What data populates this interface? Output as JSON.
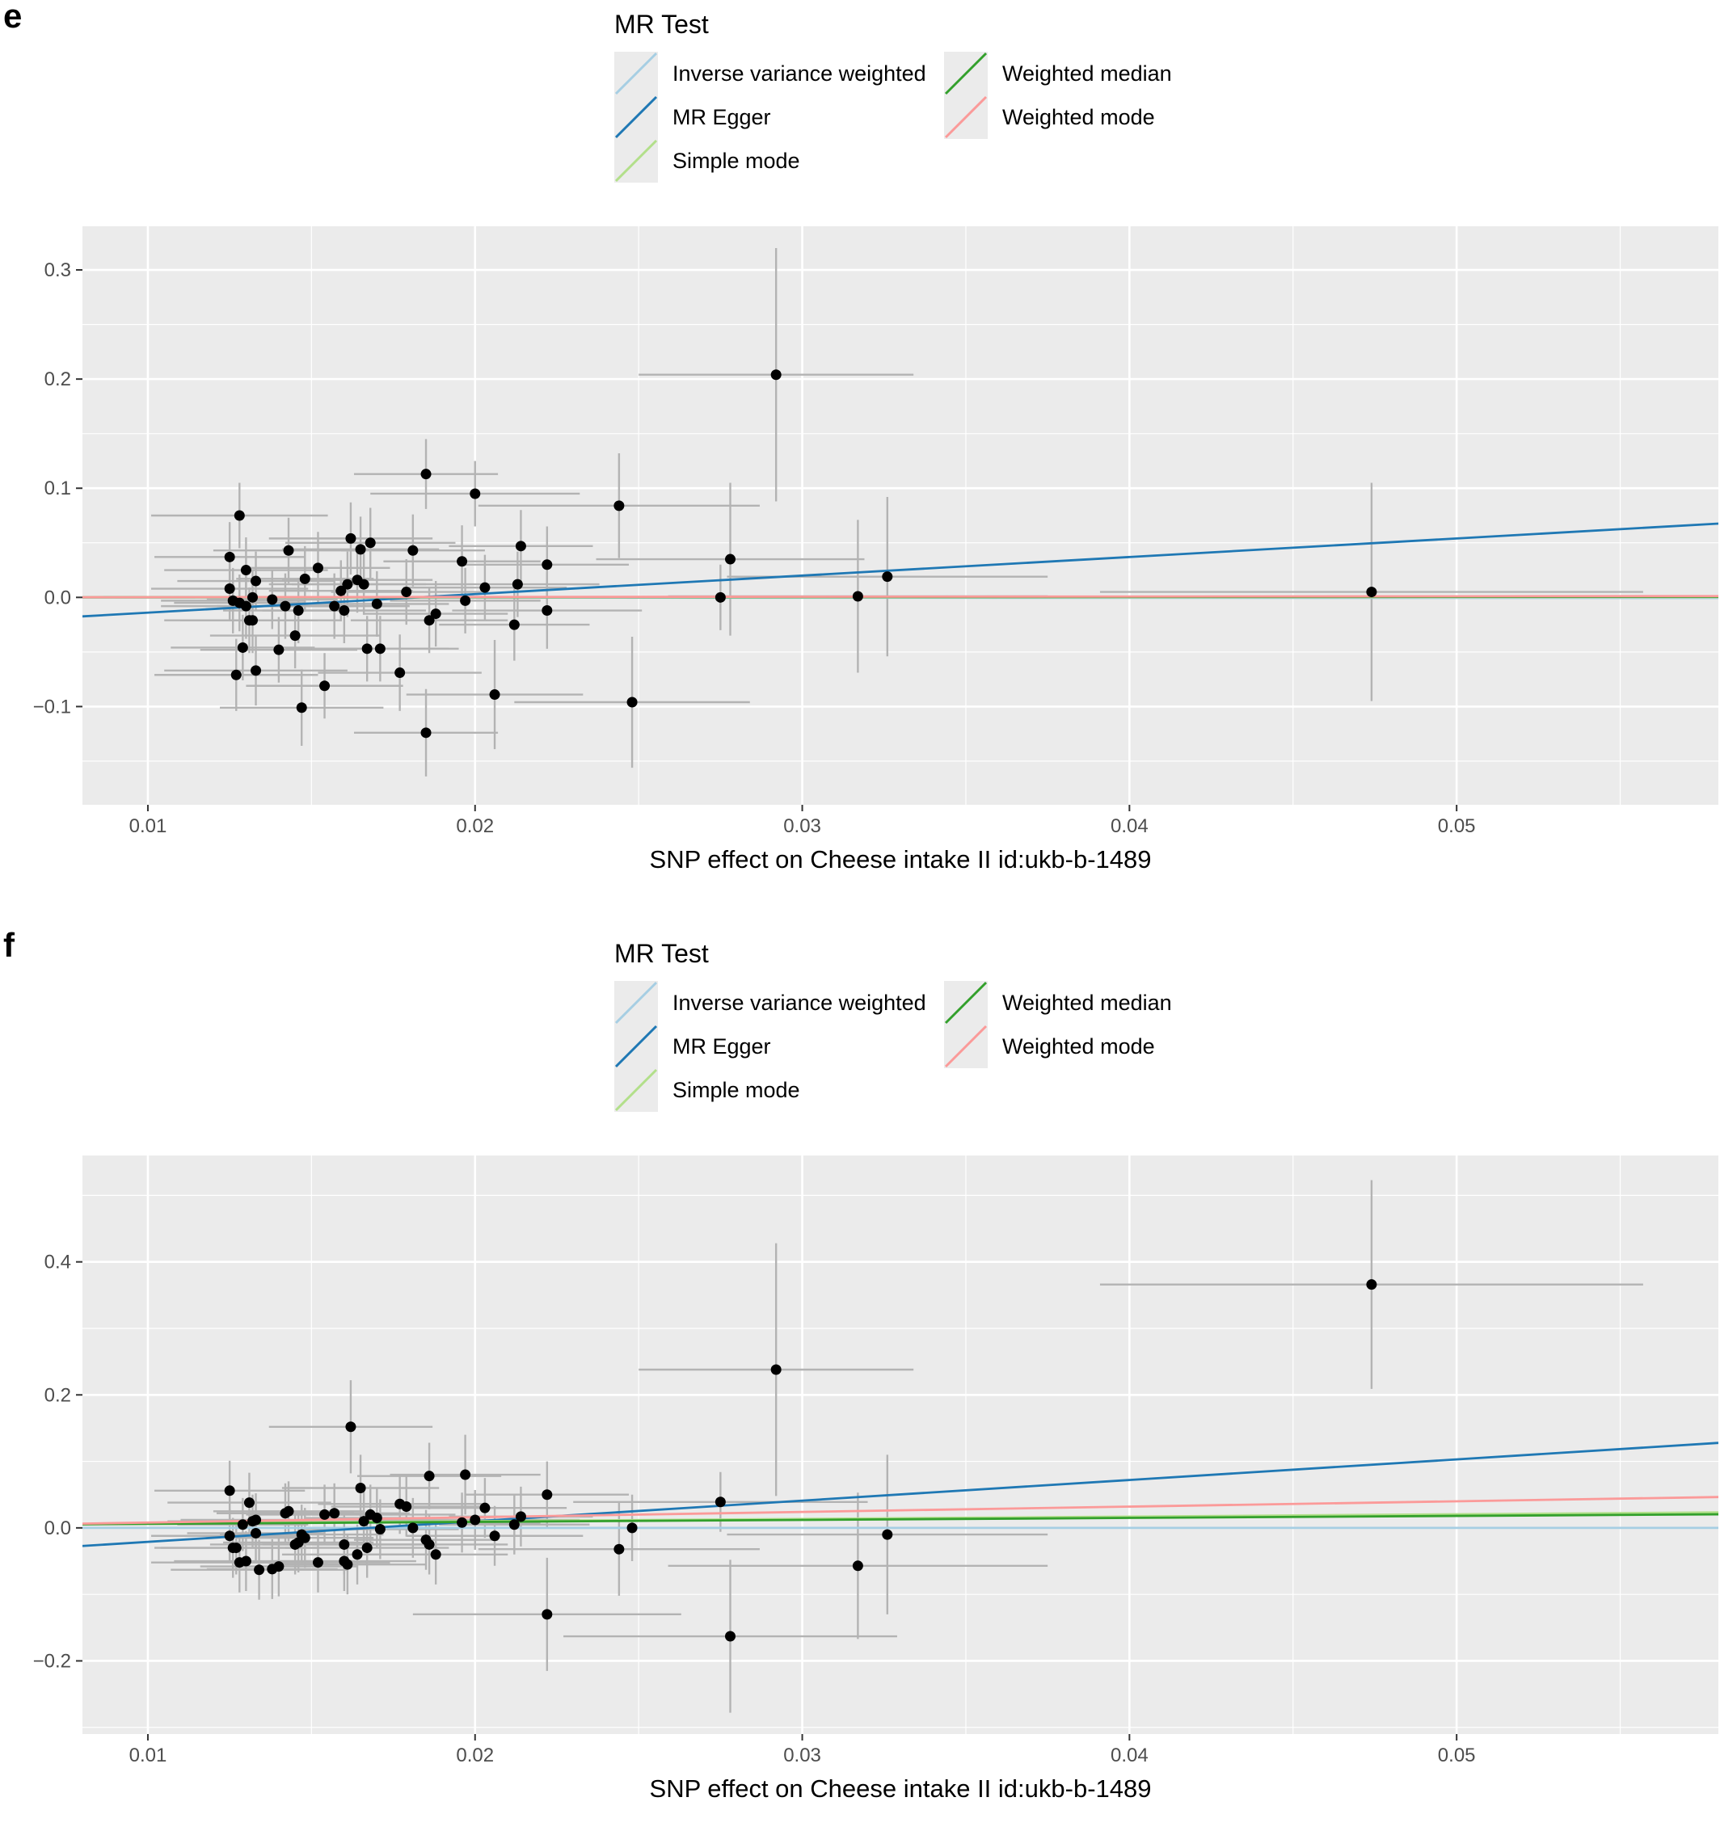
{
  "legend": {
    "title": "MR Test",
    "items": [
      {
        "label": "Inverse variance weighted",
        "color": "#a6cee3"
      },
      {
        "label": "MR Egger",
        "color": "#1f78b4"
      },
      {
        "label": "Simple mode",
        "color": "#b2df8a"
      },
      {
        "label": "Weighted median",
        "color": "#33a02c"
      },
      {
        "label": "Weighted mode",
        "color": "#fb9a99"
      }
    ]
  },
  "chart_data": [
    {
      "panel": "e",
      "type": "scatter",
      "xlabel": "SNP effect on Cheese intake II id:ukb-b-1489",
      "ylabel": "",
      "xlim": [
        0.008,
        0.058
      ],
      "ylim": [
        -0.19,
        0.34
      ],
      "x_ticks": [
        0.01,
        0.02,
        0.03,
        0.04,
        0.05
      ],
      "x_tick_labels": [
        "0.01",
        "0.02",
        "0.03",
        "0.04",
        "0.05"
      ],
      "y_ticks": [
        -0.1,
        0.0,
        0.1,
        0.2,
        0.3
      ],
      "y_tick_labels": [
        "−0.1",
        "0.0",
        "0.1",
        "0.2",
        "0.3"
      ],
      "grid": true,
      "points": [
        {
          "x": 0.0125,
          "y": 0.008,
          "xerr": 0.0024,
          "yerr": 0.03
        },
        {
          "x": 0.0125,
          "y": 0.037,
          "xerr": 0.0023,
          "yerr": 0.032
        },
        {
          "x": 0.0126,
          "y": -0.003,
          "xerr": 0.0022,
          "yerr": 0.03
        },
        {
          "x": 0.0127,
          "y": -0.071,
          "xerr": 0.0025,
          "yerr": 0.033
        },
        {
          "x": 0.0128,
          "y": 0.075,
          "xerr": 0.0027,
          "yerr": 0.03
        },
        {
          "x": 0.0128,
          "y": -0.005,
          "xerr": 0.002,
          "yerr": 0.026
        },
        {
          "x": 0.0129,
          "y": -0.046,
          "xerr": 0.0022,
          "yerr": 0.03
        },
        {
          "x": 0.013,
          "y": 0.025,
          "xerr": 0.0025,
          "yerr": 0.03
        },
        {
          "x": 0.013,
          "y": -0.008,
          "xerr": 0.0026,
          "yerr": 0.03
        },
        {
          "x": 0.0131,
          "y": -0.021,
          "xerr": 0.0021,
          "yerr": 0.03
        },
        {
          "x": 0.0132,
          "y": 0.0,
          "xerr": 0.0023,
          "yerr": 0.025
        },
        {
          "x": 0.0132,
          "y": -0.021,
          "xerr": 0.0027,
          "yerr": 0.03
        },
        {
          "x": 0.0133,
          "y": 0.015,
          "xerr": 0.0024,
          "yerr": 0.027
        },
        {
          "x": 0.0133,
          "y": -0.067,
          "xerr": 0.0028,
          "yerr": 0.032
        },
        {
          "x": 0.0138,
          "y": -0.002,
          "xerr": 0.002,
          "yerr": 0.027
        },
        {
          "x": 0.014,
          "y": -0.048,
          "xerr": 0.0024,
          "yerr": 0.03
        },
        {
          "x": 0.0142,
          "y": -0.008,
          "xerr": 0.0021,
          "yerr": 0.03
        },
        {
          "x": 0.0143,
          "y": 0.043,
          "xerr": 0.0023,
          "yerr": 0.03
        },
        {
          "x": 0.0145,
          "y": -0.035,
          "xerr": 0.0026,
          "yerr": 0.03
        },
        {
          "x": 0.0146,
          "y": -0.012,
          "xerr": 0.0023,
          "yerr": 0.03
        },
        {
          "x": 0.0147,
          "y": -0.101,
          "xerr": 0.0025,
          "yerr": 0.035
        },
        {
          "x": 0.0148,
          "y": 0.017,
          "xerr": 0.0021,
          "yerr": 0.03
        },
        {
          "x": 0.0152,
          "y": 0.027,
          "xerr": 0.0022,
          "yerr": 0.033
        },
        {
          "x": 0.0154,
          "y": -0.081,
          "xerr": 0.0024,
          "yerr": 0.03
        },
        {
          "x": 0.0157,
          "y": -0.008,
          "xerr": 0.0023,
          "yerr": 0.03
        },
        {
          "x": 0.0159,
          "y": 0.006,
          "xerr": 0.0022,
          "yerr": 0.028
        },
        {
          "x": 0.016,
          "y": -0.012,
          "xerr": 0.0025,
          "yerr": 0.03
        },
        {
          "x": 0.0161,
          "y": 0.012,
          "xerr": 0.0024,
          "yerr": 0.03
        },
        {
          "x": 0.0162,
          "y": 0.054,
          "xerr": 0.0025,
          "yerr": 0.033
        },
        {
          "x": 0.0164,
          "y": 0.016,
          "xerr": 0.0023,
          "yerr": 0.03
        },
        {
          "x": 0.0165,
          "y": 0.044,
          "xerr": 0.0024,
          "yerr": 0.03
        },
        {
          "x": 0.0166,
          "y": 0.012,
          "xerr": 0.0022,
          "yerr": 0.028
        },
        {
          "x": 0.0167,
          "y": -0.047,
          "xerr": 0.0025,
          "yerr": 0.03
        },
        {
          "x": 0.0168,
          "y": 0.05,
          "xerr": 0.0026,
          "yerr": 0.032
        },
        {
          "x": 0.017,
          "y": -0.006,
          "xerr": 0.0022,
          "yerr": 0.03
        },
        {
          "x": 0.0171,
          "y": -0.047,
          "xerr": 0.0024,
          "yerr": 0.03
        },
        {
          "x": 0.0177,
          "y": -0.069,
          "xerr": 0.0025,
          "yerr": 0.035
        },
        {
          "x": 0.0179,
          "y": 0.005,
          "xerr": 0.0023,
          "yerr": 0.03
        },
        {
          "x": 0.0181,
          "y": 0.043,
          "xerr": 0.0022,
          "yerr": 0.033
        },
        {
          "x": 0.0185,
          "y": -0.124,
          "xerr": 0.0022,
          "yerr": 0.04
        },
        {
          "x": 0.0185,
          "y": 0.113,
          "xerr": 0.0022,
          "yerr": 0.032
        },
        {
          "x": 0.0186,
          "y": -0.021,
          "xerr": 0.0024,
          "yerr": 0.03
        },
        {
          "x": 0.0188,
          "y": -0.015,
          "xerr": 0.0022,
          "yerr": 0.03
        },
        {
          "x": 0.0196,
          "y": 0.033,
          "xerr": 0.0024,
          "yerr": 0.033
        },
        {
          "x": 0.0197,
          "y": -0.003,
          "xerr": 0.0023,
          "yerr": 0.03
        },
        {
          "x": 0.02,
          "y": 0.095,
          "xerr": 0.0032,
          "yerr": 0.03
        },
        {
          "x": 0.0203,
          "y": 0.009,
          "xerr": 0.0025,
          "yerr": 0.03
        },
        {
          "x": 0.0206,
          "y": -0.089,
          "xerr": 0.0027,
          "yerr": 0.05
        },
        {
          "x": 0.0212,
          "y": -0.025,
          "xerr": 0.0023,
          "yerr": 0.033
        },
        {
          "x": 0.0213,
          "y": 0.012,
          "xerr": 0.0025,
          "yerr": 0.03
        },
        {
          "x": 0.0214,
          "y": 0.047,
          "xerr": 0.0022,
          "yerr": 0.033
        },
        {
          "x": 0.0222,
          "y": -0.012,
          "xerr": 0.0029,
          "yerr": 0.035
        },
        {
          "x": 0.0222,
          "y": 0.03,
          "xerr": 0.0025,
          "yerr": 0.035
        },
        {
          "x": 0.0244,
          "y": 0.084,
          "xerr": 0.0043,
          "yerr": 0.048
        },
        {
          "x": 0.0248,
          "y": -0.096,
          "xerr": 0.0036,
          "yerr": 0.06
        },
        {
          "x": 0.0275,
          "y": 0.0,
          "xerr": 0.0045,
          "yerr": 0.03
        },
        {
          "x": 0.0278,
          "y": 0.035,
          "xerr": 0.0041,
          "yerr": 0.07
        },
        {
          "x": 0.0292,
          "y": 0.204,
          "xerr": 0.0042,
          "yerr": 0.116
        },
        {
          "x": 0.0317,
          "y": 0.001,
          "xerr": 0.0058,
          "yerr": 0.07
        },
        {
          "x": 0.0326,
          "y": 0.019,
          "xerr": 0.0049,
          "yerr": 0.073
        },
        {
          "x": 0.0474,
          "y": 0.005,
          "xerr": 0.0083,
          "yerr": 0.1
        }
      ],
      "series": [
        {
          "name": "Inverse variance weighted",
          "color": "#a6cee3",
          "slope": -0.01,
          "intercept": 0
        },
        {
          "name": "MR Egger",
          "color": "#1f78b4",
          "slope": 1.7,
          "intercept": -0.031
        },
        {
          "name": "Simple mode",
          "color": "#b2df8a",
          "slope": 0.005,
          "intercept": 0
        },
        {
          "name": "Weighted median",
          "color": "#33a02c",
          "slope": 0.01,
          "intercept": 0
        },
        {
          "name": "Weighted mode",
          "color": "#fb9a99",
          "slope": 0.02,
          "intercept": 0
        }
      ]
    },
    {
      "panel": "f",
      "type": "scatter",
      "xlabel": "SNP effect on Cheese intake II id:ukb-b-1489",
      "ylabel": "",
      "xlim": [
        0.008,
        0.058
      ],
      "ylim": [
        -0.31,
        0.56
      ],
      "x_ticks": [
        0.01,
        0.02,
        0.03,
        0.04,
        0.05
      ],
      "x_tick_labels": [
        "0.01",
        "0.02",
        "0.03",
        "0.04",
        "0.05"
      ],
      "y_ticks": [
        -0.2,
        0.0,
        0.2,
        0.4
      ],
      "y_tick_labels": [
        "−0.2",
        "0.0",
        "0.2",
        "0.4"
      ],
      "grid": true,
      "points": [
        {
          "x": 0.0125,
          "y": 0.056,
          "xerr": 0.0023,
          "yerr": 0.045
        },
        {
          "x": 0.0125,
          "y": -0.012,
          "xerr": 0.0024,
          "yerr": 0.04
        },
        {
          "x": 0.0126,
          "y": -0.03,
          "xerr": 0.0022,
          "yerr": 0.045
        },
        {
          "x": 0.0127,
          "y": -0.03,
          "xerr": 0.0025,
          "yerr": 0.04
        },
        {
          "x": 0.0128,
          "y": -0.052,
          "xerr": 0.0027,
          "yerr": 0.045
        },
        {
          "x": 0.0129,
          "y": 0.005,
          "xerr": 0.002,
          "yerr": 0.04
        },
        {
          "x": 0.013,
          "y": -0.05,
          "xerr": 0.0022,
          "yerr": 0.045
        },
        {
          "x": 0.0131,
          "y": 0.038,
          "xerr": 0.0025,
          "yerr": 0.045
        },
        {
          "x": 0.0132,
          "y": 0.01,
          "xerr": 0.0026,
          "yerr": 0.04
        },
        {
          "x": 0.0133,
          "y": -0.008,
          "xerr": 0.0021,
          "yerr": 0.045
        },
        {
          "x": 0.0133,
          "y": 0.012,
          "xerr": 0.0023,
          "yerr": 0.04
        },
        {
          "x": 0.0134,
          "y": -0.063,
          "xerr": 0.0027,
          "yerr": 0.045
        },
        {
          "x": 0.0138,
          "y": -0.062,
          "xerr": 0.002,
          "yerr": 0.045
        },
        {
          "x": 0.014,
          "y": -0.058,
          "xerr": 0.0024,
          "yerr": 0.045
        },
        {
          "x": 0.0142,
          "y": 0.022,
          "xerr": 0.0021,
          "yerr": 0.045
        },
        {
          "x": 0.0143,
          "y": 0.025,
          "xerr": 0.0023,
          "yerr": 0.045
        },
        {
          "x": 0.0145,
          "y": -0.025,
          "xerr": 0.0026,
          "yerr": 0.045
        },
        {
          "x": 0.0146,
          "y": -0.022,
          "xerr": 0.0023,
          "yerr": 0.045
        },
        {
          "x": 0.0147,
          "y": -0.01,
          "xerr": 0.0025,
          "yerr": 0.045
        },
        {
          "x": 0.0148,
          "y": -0.015,
          "xerr": 0.0021,
          "yerr": 0.045
        },
        {
          "x": 0.0152,
          "y": -0.052,
          "xerr": 0.0022,
          "yerr": 0.045
        },
        {
          "x": 0.0154,
          "y": 0.02,
          "xerr": 0.0024,
          "yerr": 0.045
        },
        {
          "x": 0.0157,
          "y": 0.022,
          "xerr": 0.0023,
          "yerr": 0.045
        },
        {
          "x": 0.016,
          "y": -0.05,
          "xerr": 0.0022,
          "yerr": 0.045
        },
        {
          "x": 0.016,
          "y": -0.025,
          "xerr": 0.0025,
          "yerr": 0.045
        },
        {
          "x": 0.0161,
          "y": -0.055,
          "xerr": 0.0024,
          "yerr": 0.045
        },
        {
          "x": 0.0162,
          "y": 0.152,
          "xerr": 0.0025,
          "yerr": 0.07
        },
        {
          "x": 0.0164,
          "y": -0.04,
          "xerr": 0.0023,
          "yerr": 0.045
        },
        {
          "x": 0.0165,
          "y": 0.06,
          "xerr": 0.0024,
          "yerr": 0.05
        },
        {
          "x": 0.0166,
          "y": 0.01,
          "xerr": 0.0022,
          "yerr": 0.045
        },
        {
          "x": 0.0167,
          "y": -0.03,
          "xerr": 0.0025,
          "yerr": 0.045
        },
        {
          "x": 0.0168,
          "y": 0.02,
          "xerr": 0.0026,
          "yerr": 0.045
        },
        {
          "x": 0.017,
          "y": 0.015,
          "xerr": 0.0022,
          "yerr": 0.045
        },
        {
          "x": 0.0171,
          "y": -0.002,
          "xerr": 0.0024,
          "yerr": 0.045
        },
        {
          "x": 0.0177,
          "y": 0.036,
          "xerr": 0.0025,
          "yerr": 0.045
        },
        {
          "x": 0.0179,
          "y": 0.032,
          "xerr": 0.0023,
          "yerr": 0.045
        },
        {
          "x": 0.0181,
          "y": 0.0,
          "xerr": 0.0022,
          "yerr": 0.045
        },
        {
          "x": 0.0185,
          "y": -0.018,
          "xerr": 0.0022,
          "yerr": 0.045
        },
        {
          "x": 0.0186,
          "y": -0.025,
          "xerr": 0.0024,
          "yerr": 0.045
        },
        {
          "x": 0.0186,
          "y": 0.078,
          "xerr": 0.0022,
          "yerr": 0.05
        },
        {
          "x": 0.0188,
          "y": -0.04,
          "xerr": 0.0022,
          "yerr": 0.045
        },
        {
          "x": 0.0196,
          "y": 0.008,
          "xerr": 0.0024,
          "yerr": 0.045
        },
        {
          "x": 0.0197,
          "y": 0.08,
          "xerr": 0.0023,
          "yerr": 0.06
        },
        {
          "x": 0.02,
          "y": 0.012,
          "xerr": 0.0032,
          "yerr": 0.045
        },
        {
          "x": 0.0203,
          "y": 0.03,
          "xerr": 0.0025,
          "yerr": 0.045
        },
        {
          "x": 0.0206,
          "y": -0.012,
          "xerr": 0.0027,
          "yerr": 0.045
        },
        {
          "x": 0.0212,
          "y": 0.005,
          "xerr": 0.0023,
          "yerr": 0.045
        },
        {
          "x": 0.0214,
          "y": 0.017,
          "xerr": 0.0022,
          "yerr": 0.045
        },
        {
          "x": 0.0222,
          "y": 0.05,
          "xerr": 0.0025,
          "yerr": 0.05
        },
        {
          "x": 0.0222,
          "y": -0.13,
          "xerr": 0.0041,
          "yerr": 0.085
        },
        {
          "x": 0.0244,
          "y": -0.032,
          "xerr": 0.0043,
          "yerr": 0.07
        },
        {
          "x": 0.0248,
          "y": 0.0,
          "xerr": 0.0036,
          "yerr": 0.05
        },
        {
          "x": 0.0275,
          "y": 0.039,
          "xerr": 0.0045,
          "yerr": 0.045
        },
        {
          "x": 0.0278,
          "y": -0.163,
          "xerr": 0.0051,
          "yerr": 0.115
        },
        {
          "x": 0.0292,
          "y": 0.238,
          "xerr": 0.0042,
          "yerr": 0.19
        },
        {
          "x": 0.0317,
          "y": -0.057,
          "xerr": 0.0058,
          "yerr": 0.11
        },
        {
          "x": 0.0326,
          "y": -0.01,
          "xerr": 0.0049,
          "yerr": 0.12
        },
        {
          "x": 0.0474,
          "y": 0.366,
          "xerr": 0.0083,
          "yerr": 0.157
        }
      ],
      "series": [
        {
          "name": "Inverse variance weighted",
          "color": "#a6cee3",
          "slope": 0.0,
          "intercept": 0
        },
        {
          "name": "MR Egger",
          "color": "#1f78b4",
          "slope": 3.1,
          "intercept": -0.052
        },
        {
          "name": "Simple mode",
          "color": "#b2df8a",
          "slope": 0.35,
          "intercept": 0.003
        },
        {
          "name": "Weighted median",
          "color": "#33a02c",
          "slope": 0.3,
          "intercept": 0.003
        },
        {
          "name": "Weighted mode",
          "color": "#fb9a99",
          "slope": 0.8,
          "intercept": 0
        }
      ]
    }
  ]
}
